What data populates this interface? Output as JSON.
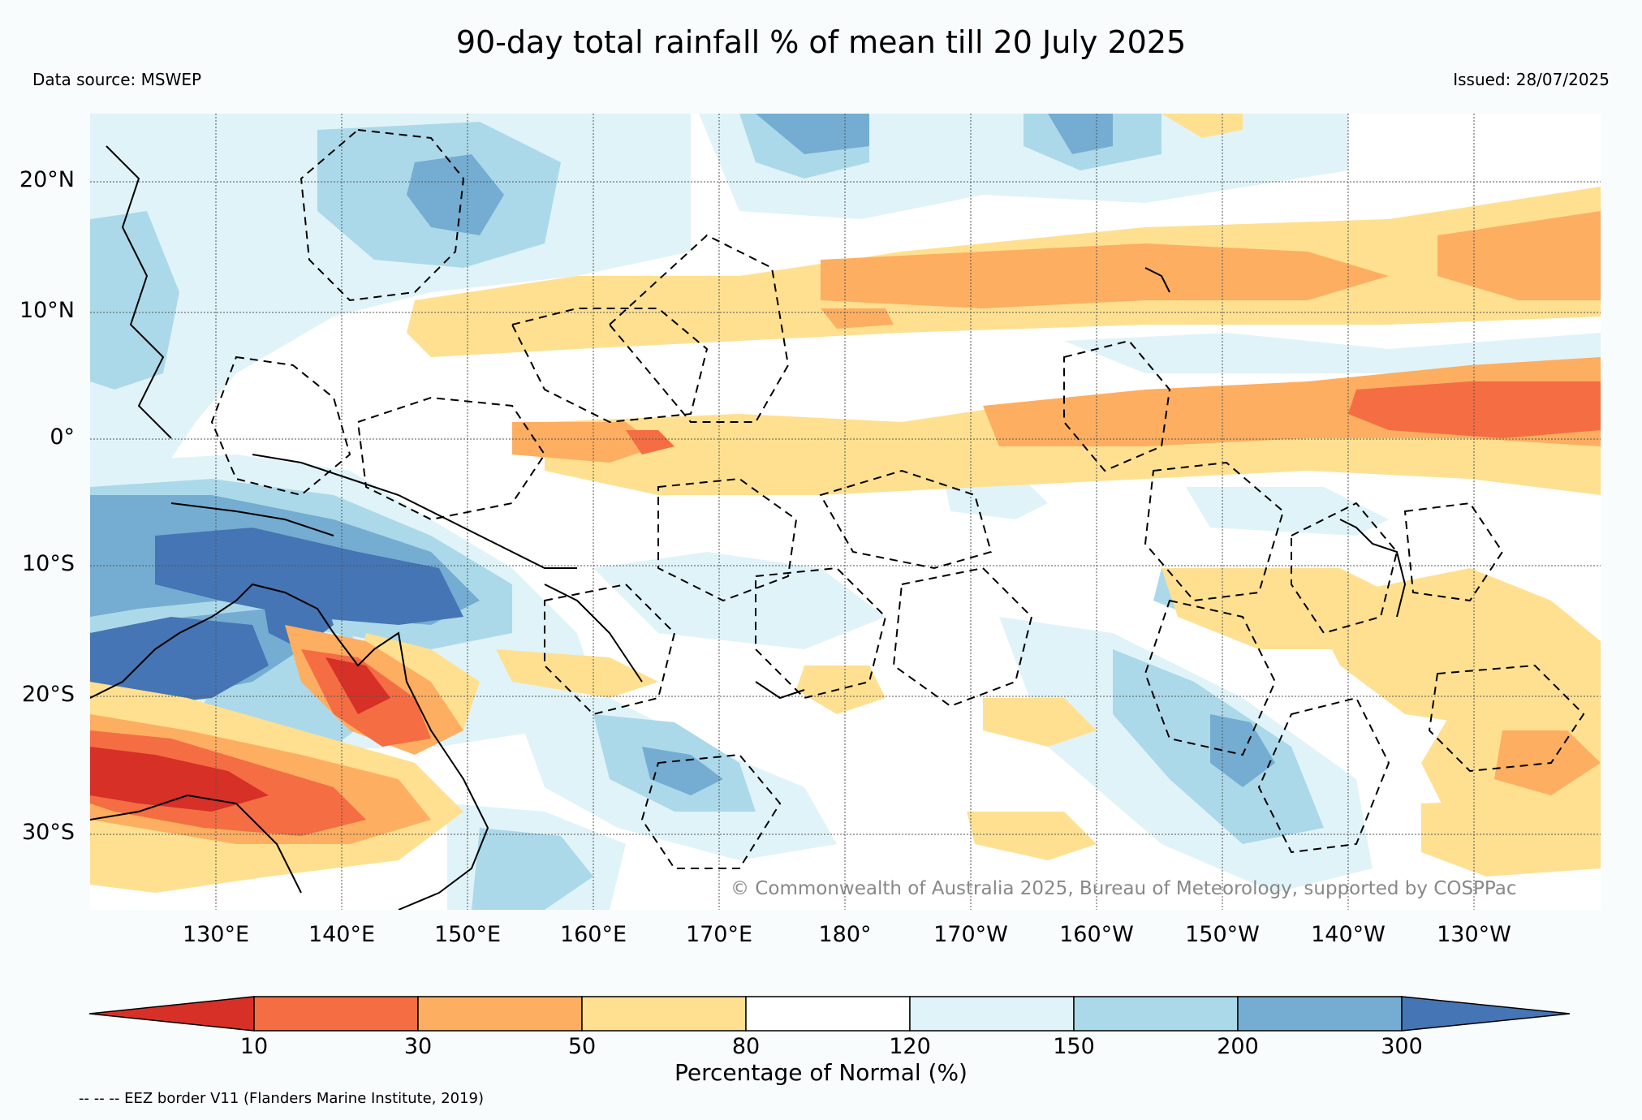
{
  "header": {
    "title": "90-day total rainfall % of mean till 20 July 2025",
    "data_source": "Data source: MSWEP",
    "issued": "Issued: 28/07/2025"
  },
  "map": {
    "lat_labels": [
      "20°N",
      "10°N",
      "0°",
      "10°S",
      "20°S",
      "30°S"
    ],
    "lon_labels": [
      "130°E",
      "140°E",
      "150°E",
      "160°E",
      "170°E",
      "180°",
      "170°W",
      "160°W",
      "150°W",
      "140°W",
      "130°W"
    ],
    "copyright": "© Commonwealth of Australia 2025, Bureau of Meteorology, supported by COSPPac"
  },
  "legend": {
    "ticks": [
      "10",
      "30",
      "50",
      "80",
      "120",
      "150",
      "200",
      "300"
    ],
    "label": "Percentage of Normal (%)",
    "colors": [
      "#d73027",
      "#f46d43",
      "#fdae61",
      "#fee090",
      "#ffffff",
      "#e0f3f8",
      "#abd9e9",
      "#74add1",
      "#4575b4"
    ]
  },
  "footnote": "-- -- -- EEZ border V11 (Flanders Marine Institute, 2019)"
}
